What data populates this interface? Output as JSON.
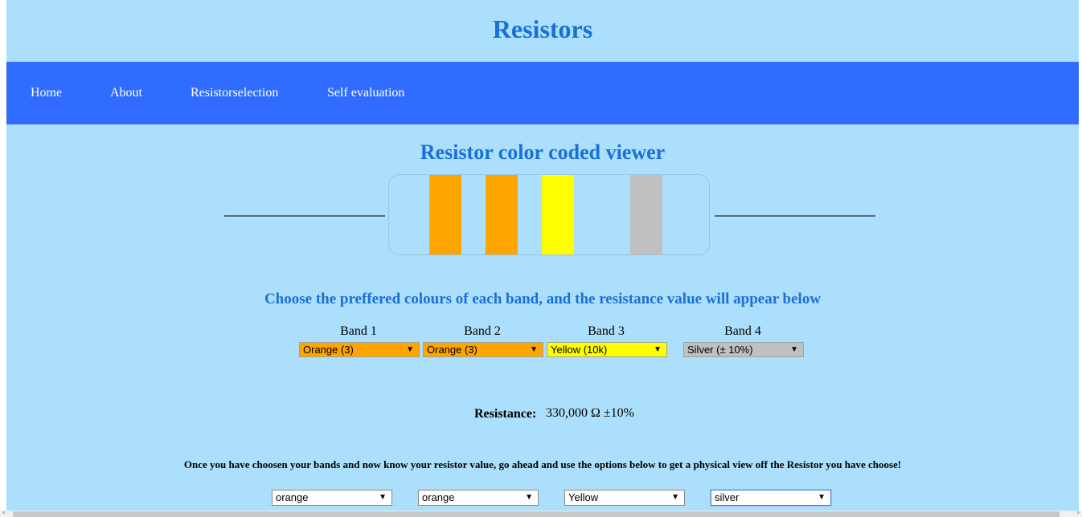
{
  "header": {
    "title": "Resistors"
  },
  "nav": {
    "items": [
      {
        "label": "Home"
      },
      {
        "label": "About"
      },
      {
        "label": "Resistorselection"
      },
      {
        "label": "Self evaluation"
      }
    ]
  },
  "viewer": {
    "title": "Resistor color coded viewer",
    "bands": [
      {
        "color": "#ffa500"
      },
      {
        "color": "#ffa500"
      },
      {
        "color": "#ffff00"
      },
      {
        "color": "#c0c0c0"
      }
    ]
  },
  "instruction": "Choose the preffered colours of each band, and the resistance value will appear below",
  "band_selects": [
    {
      "label": "Band 1",
      "value": "Orange (3)",
      "bg": "#ffa500"
    },
    {
      "label": "Band 2",
      "value": "Orange (3)",
      "bg": "#ffa500"
    },
    {
      "label": "Band 3",
      "value": "Yellow (10k)",
      "bg": "#ffff00"
    },
    {
      "label": "Band 4",
      "value": "Silver (± 10%)",
      "bg": "#c0c0c0"
    }
  ],
  "resistance": {
    "label": "Resistance:",
    "value": "330,000 Ω ±10%"
  },
  "physical": {
    "note": "Once you have choosen your bands and now know your resistor value, go ahead and use the options below to get a physical view off the Resistor you have choose!",
    "selects": [
      {
        "value": "orange"
      },
      {
        "value": "orange"
      },
      {
        "value": "Yellow"
      },
      {
        "value": "silver"
      }
    ]
  },
  "icons": {
    "dropdown": "▼",
    "scroll_left": "‹",
    "scroll_right": "›"
  }
}
